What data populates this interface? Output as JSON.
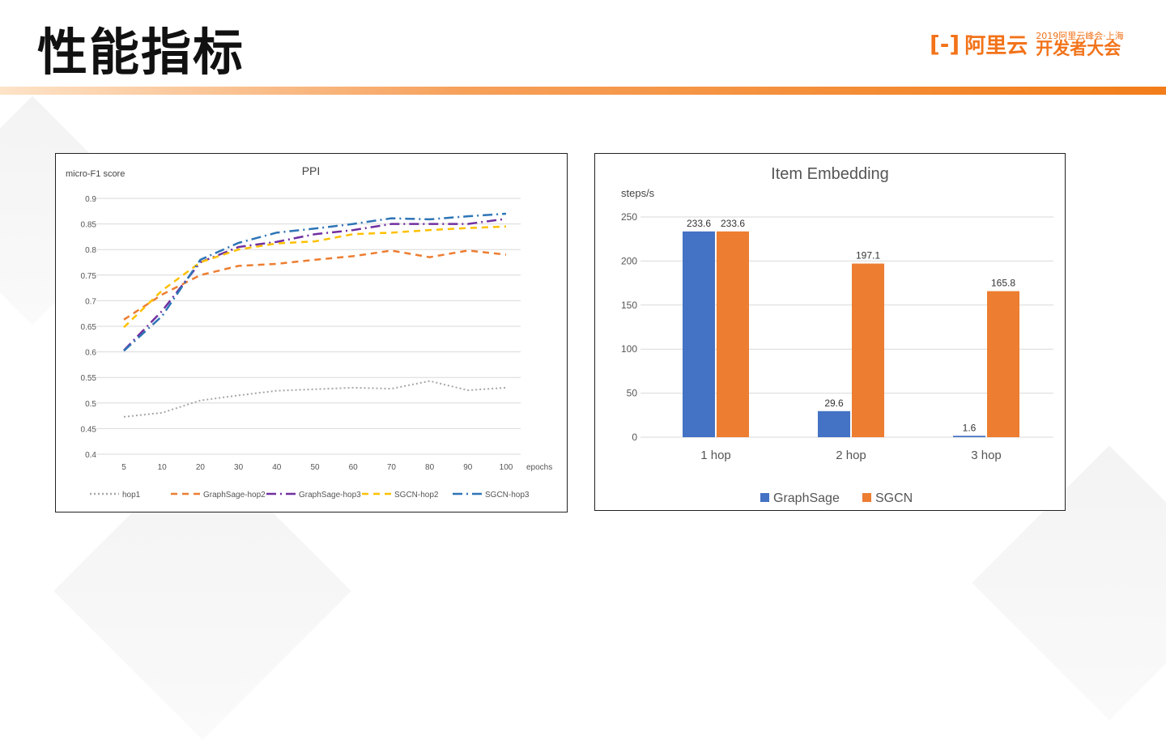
{
  "slide": {
    "title": "性能指标"
  },
  "logo": {
    "mark": "[-]",
    "name": "阿里云",
    "event_line1": "2019阿里云峰会·上海",
    "event_line2": "开发者大会"
  },
  "colors": {
    "accent": "#f27d1a",
    "hop1": "#a6a6a6",
    "gs_hop2": "#ed7d31",
    "gs_hop3": "#7030a0",
    "sgcn_hop2": "#ffc000",
    "sgcn_hop3": "#2e75b6",
    "graphsage_bar": "#4472c4",
    "sgcn_bar": "#ed7d31"
  },
  "chart_data": [
    {
      "type": "line",
      "title": "PPI",
      "ylabel": "micro-F1 score",
      "xlabel": "epochs",
      "categories": [
        "5",
        "10",
        "20",
        "30",
        "40",
        "50",
        "60",
        "70",
        "80",
        "90",
        "100"
      ],
      "ylim": [
        0.4,
        0.9
      ],
      "yticks": [
        "0.9",
        "0.85",
        "0.8",
        "0.75",
        "0.7",
        "0.65",
        "0.6",
        "0.55",
        "0.5",
        "0.45",
        "0.4"
      ],
      "grid": true,
      "legend": "bottom",
      "series": [
        {
          "name": "hop1",
          "style": "dotted",
          "color": "#a6a6a6",
          "values": [
            0.473,
            0.481,
            0.505,
            0.515,
            0.524,
            0.527,
            0.53,
            0.528,
            0.543,
            0.525,
            0.53
          ]
        },
        {
          "name": "GraphSage-hop2",
          "style": "dashed",
          "color": "#ed7d31",
          "values": [
            0.663,
            0.712,
            0.75,
            0.768,
            0.772,
            0.78,
            0.787,
            0.798,
            0.785,
            0.798,
            0.79
          ]
        },
        {
          "name": "GraphSage-hop3",
          "style": "dashdot",
          "color": "#7030a0",
          "values": [
            0.603,
            0.68,
            0.775,
            0.805,
            0.815,
            0.83,
            0.838,
            0.85,
            0.85,
            0.85,
            0.86
          ]
        },
        {
          "name": "SGCN-hop2",
          "style": "dashed",
          "color": "#ffc000",
          "values": [
            0.648,
            0.72,
            0.775,
            0.8,
            0.812,
            0.816,
            0.83,
            0.833,
            0.838,
            0.842,
            0.845
          ]
        },
        {
          "name": "SGCN-hop3",
          "style": "dashdot",
          "color": "#2e75b6",
          "values": [
            0.602,
            0.67,
            0.78,
            0.813,
            0.833,
            0.841,
            0.85,
            0.861,
            0.859,
            0.865,
            0.87
          ]
        }
      ]
    },
    {
      "type": "bar",
      "title": "Item Embedding",
      "ylabel": "steps/s",
      "categories": [
        "1 hop",
        "2 hop",
        "3 hop"
      ],
      "ylim": [
        0,
        250
      ],
      "yticks": [
        "250",
        "200",
        "150",
        "100",
        "50",
        "0"
      ],
      "grid": true,
      "legend": "bottom",
      "series": [
        {
          "name": "GraphSage",
          "color": "#4472c4",
          "values": [
            233.6,
            29.6,
            1.6
          ],
          "labels": [
            "233.6",
            "29.6",
            "1.6"
          ]
        },
        {
          "name": "SGCN",
          "color": "#ed7d31",
          "values": [
            233.6,
            197.1,
            165.8
          ],
          "labels": [
            "233.6",
            "197.1",
            "165.8"
          ]
        }
      ]
    }
  ]
}
